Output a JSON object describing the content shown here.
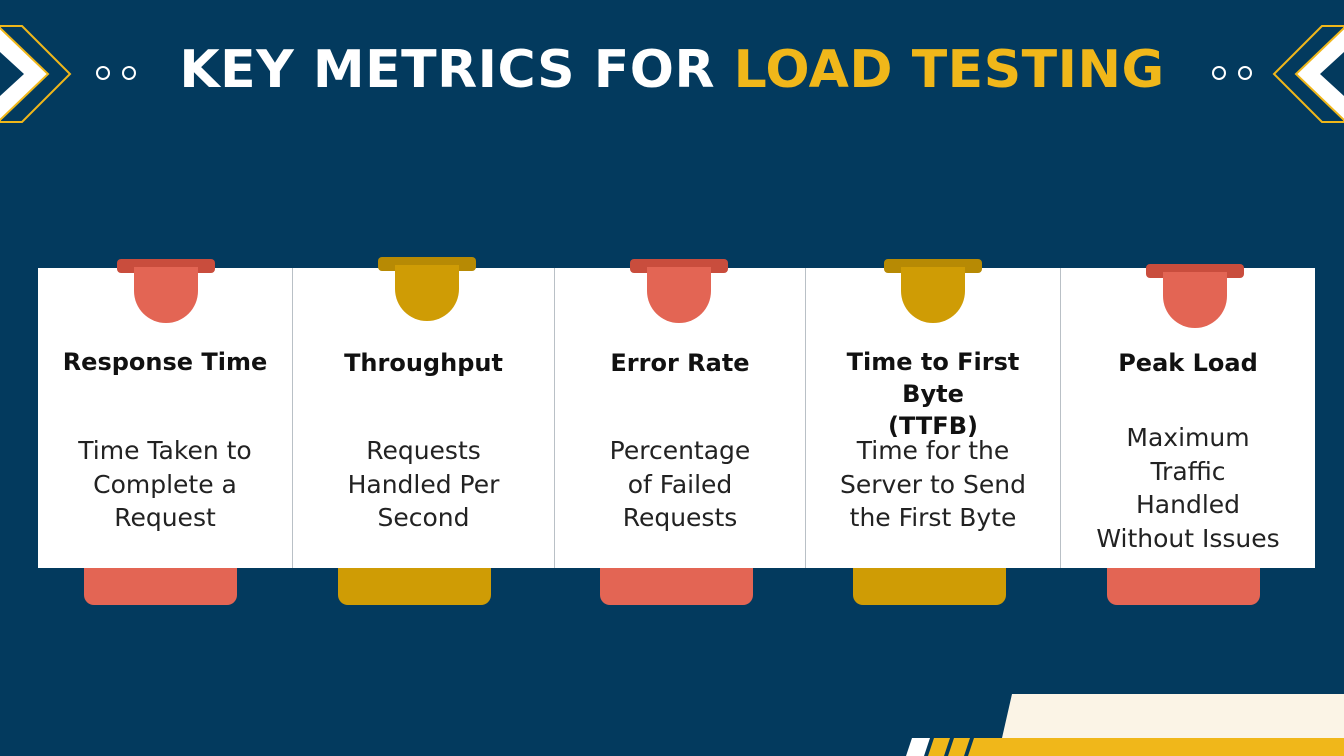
{
  "title": {
    "main": "KEY METRICS FOR ",
    "accent": "LOAD TESTING"
  },
  "colors": {
    "background": "#033a5e",
    "accent": "#f0b71a",
    "coral": "#e36554",
    "gold": "#cf9c05",
    "panel": "#ffffff",
    "footer_cream": "#fbf4e6"
  },
  "cards": [
    {
      "name": "Response Time",
      "desc": [
        "Time Taken to",
        "Complete a",
        "Request"
      ],
      "tab_color": "coral"
    },
    {
      "name": "Throughput",
      "desc": [
        "Requests",
        "Handled Per",
        "Second"
      ],
      "tab_color": "gold"
    },
    {
      "name": "Error Rate",
      "desc": [
        "Percentage",
        "of Failed",
        "Requests"
      ],
      "tab_color": "coral"
    },
    {
      "name": "Time to First Byte (TTFB)",
      "name_lines": [
        "Time to First Byte",
        "(TTFB)"
      ],
      "desc": [
        "Time for the",
        "Server to Send",
        "the First Byte"
      ],
      "tab_color": "gold"
    },
    {
      "name": "Peak Load",
      "desc": [
        "Maximum",
        "Traffic",
        "Handled",
        "Without Issues"
      ],
      "tab_color": "coral"
    }
  ]
}
